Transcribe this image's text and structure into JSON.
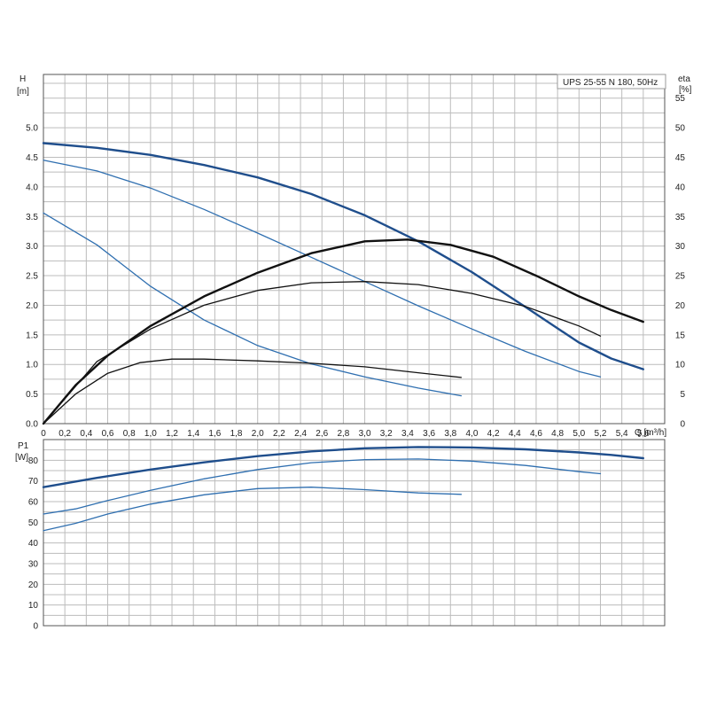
{
  "chart_data": [
    {
      "type": "line",
      "title": "UPS 25-55 N 180, 50Hz",
      "xlabel": "Q [m³/h]",
      "ylabel_left": "H",
      "ylabel_left_unit": "[m]",
      "ylabel_right": "eta",
      "ylabel_right_unit": "[%]",
      "xlim": [
        0,
        5.8
      ],
      "ylim_left": [
        0,
        5.9
      ],
      "ylim_right": [
        0,
        59
      ],
      "x_ticks": [
        "0",
        "0,2",
        "0,4",
        "0,6",
        "0,8",
        "1,0",
        "1,2",
        "1,4",
        "1,6",
        "1,8",
        "2,0",
        "2,2",
        "2,4",
        "2,6",
        "2,8",
        "3,0",
        "3,2",
        "3,4",
        "3,6",
        "3,8",
        "4,0",
        "4,2",
        "4,4",
        "4,6",
        "4,8",
        "5,0",
        "5,2",
        "5,4",
        "5,6"
      ],
      "y_ticks_left": [
        "0.0",
        "0.5",
        "1.0",
        "1.5",
        "2.0",
        "2.5",
        "3.0",
        "3.5",
        "4.0",
        "4.5",
        "5.0"
      ],
      "y_ticks_right": [
        "0",
        "5",
        "10",
        "15",
        "20",
        "25",
        "30",
        "35",
        "40",
        "45",
        "50",
        "55"
      ],
      "grid": true,
      "series": [
        {
          "axis": "left",
          "color": "#1f4e8c",
          "weight": "heavy",
          "x": [
            0,
            0.5,
            1.0,
            1.5,
            2.0,
            2.5,
            3.0,
            3.5,
            4.0,
            4.5,
            5.0,
            5.3,
            5.6
          ],
          "y": [
            4.74,
            4.66,
            4.54,
            4.37,
            4.16,
            3.88,
            3.52,
            3.08,
            2.56,
            1.97,
            1.37,
            1.1,
            0.92
          ]
        },
        {
          "axis": "left",
          "color": "#2f6fb0",
          "weight": "light",
          "x": [
            0,
            0.5,
            1.0,
            1.5,
            2.0,
            2.5,
            3.0,
            3.5,
            4.0,
            4.5,
            5.0,
            5.2
          ],
          "y": [
            4.45,
            4.27,
            3.98,
            3.62,
            3.22,
            2.81,
            2.4,
            1.99,
            1.6,
            1.22,
            0.88,
            0.79
          ]
        },
        {
          "axis": "left",
          "color": "#2f6fb0",
          "weight": "light",
          "x": [
            0,
            0.5,
            1.0,
            1.5,
            2.0,
            2.5,
            3.0,
            3.5,
            3.9
          ],
          "y": [
            3.56,
            3.02,
            2.32,
            1.75,
            1.32,
            1.01,
            0.79,
            0.6,
            0.47
          ]
        },
        {
          "axis": "right",
          "color": "#111111",
          "weight": "heavy",
          "x": [
            0,
            0.3,
            0.6,
            1.0,
            1.5,
            2.0,
            2.5,
            3.0,
            3.4,
            3.8,
            4.2,
            4.6,
            5.0,
            5.3,
            5.6
          ],
          "y": [
            0,
            6.5,
            11.5,
            16.5,
            21.5,
            25.5,
            28.8,
            30.8,
            31.1,
            30.2,
            28.2,
            25.0,
            21.5,
            19.2,
            17.2
          ]
        },
        {
          "axis": "right",
          "color": "#111111",
          "weight": "light",
          "x": [
            0,
            0.5,
            1.0,
            1.5,
            2.0,
            2.5,
            3.0,
            3.5,
            4.0,
            4.5,
            5.0,
            5.2
          ],
          "y": [
            0,
            10.5,
            16.0,
            20.0,
            22.5,
            23.8,
            24.0,
            23.5,
            22.0,
            19.8,
            16.5,
            14.8
          ]
        },
        {
          "axis": "right",
          "color": "#111111",
          "weight": "light",
          "x": [
            0,
            0.3,
            0.6,
            0.9,
            1.2,
            1.5,
            2.0,
            2.5,
            3.0,
            3.5,
            3.9
          ],
          "y": [
            0,
            5.0,
            8.5,
            10.3,
            10.9,
            10.9,
            10.6,
            10.2,
            9.6,
            8.6,
            7.8
          ]
        }
      ]
    },
    {
      "type": "line",
      "ylabel": "P1",
      "ylabel_unit": "[W]",
      "xlim": [
        0,
        5.8
      ],
      "ylim": [
        0,
        90
      ],
      "y_ticks": [
        "0",
        "10",
        "20",
        "30",
        "40",
        "50",
        "60",
        "70",
        "80"
      ],
      "grid": true,
      "series": [
        {
          "color": "#1f4e8c",
          "weight": "heavy",
          "x": [
            0,
            0.5,
            1.0,
            1.5,
            2.0,
            2.5,
            3.0,
            3.5,
            4.0,
            4.5,
            5.0,
            5.3,
            5.6
          ],
          "y": [
            67,
            71.5,
            75.5,
            79.0,
            82.0,
            84.3,
            85.8,
            86.4,
            86.2,
            85.3,
            83.8,
            82.6,
            81.0
          ]
        },
        {
          "color": "#2f6fb0",
          "weight": "light",
          "x": [
            0,
            0.3,
            0.6,
            1.0,
            1.5,
            2.0,
            2.5,
            3.0,
            3.5,
            4.0,
            4.5,
            5.0,
            5.2
          ],
          "y": [
            54,
            56.5,
            60.5,
            65.5,
            71.0,
            75.5,
            78.8,
            80.3,
            80.6,
            79.6,
            77.5,
            74.5,
            73.5
          ]
        },
        {
          "color": "#2f6fb0",
          "weight": "light",
          "x": [
            0,
            0.3,
            0.6,
            1.0,
            1.5,
            2.0,
            2.5,
            3.0,
            3.5,
            3.9
          ],
          "y": [
            46,
            49.5,
            54.0,
            58.8,
            63.3,
            66.3,
            67.0,
            65.8,
            64.2,
            63.5
          ]
        }
      ]
    }
  ]
}
